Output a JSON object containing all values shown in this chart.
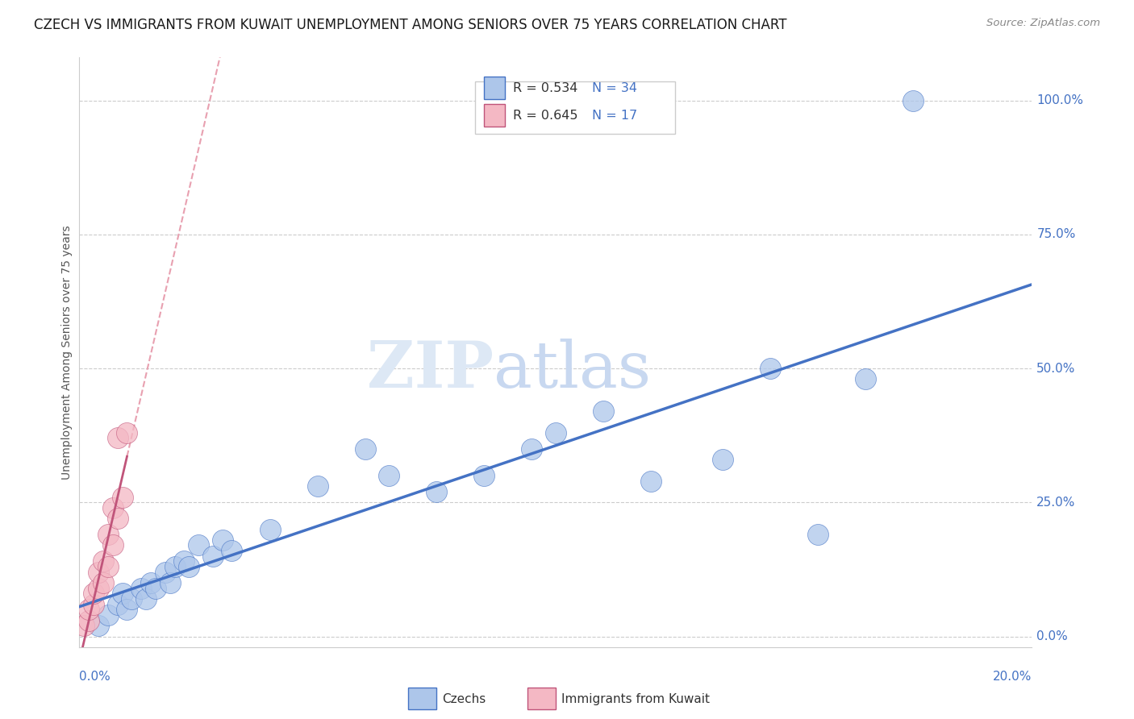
{
  "title": "CZECH VS IMMIGRANTS FROM KUWAIT UNEMPLOYMENT AMONG SENIORS OVER 75 YEARS CORRELATION CHART",
  "source": "Source: ZipAtlas.com",
  "ylabel": "Unemployment Among Seniors over 75 years",
  "ytick_labels": [
    "0.0%",
    "25.0%",
    "50.0%",
    "75.0%",
    "100.0%"
  ],
  "ytick_values": [
    0.0,
    0.25,
    0.5,
    0.75,
    1.0
  ],
  "xlim": [
    0.0,
    0.2
  ],
  "ylim": [
    -0.02,
    1.08
  ],
  "plot_ylim": [
    -0.02,
    1.08
  ],
  "blue_color": "#adc6ea",
  "pink_color": "#f4b8c4",
  "trendline_blue_color": "#4472c4",
  "trendline_pink_color": "#c0547a",
  "dashed_pink_color": "#e8a0b0",
  "axis_label_color": "#4472c4",
  "czechs_x": [
    0.004,
    0.006,
    0.008,
    0.009,
    0.01,
    0.011,
    0.013,
    0.014,
    0.015,
    0.016,
    0.018,
    0.019,
    0.02,
    0.022,
    0.023,
    0.025,
    0.028,
    0.03,
    0.032,
    0.04,
    0.05,
    0.06,
    0.065,
    0.075,
    0.085,
    0.095,
    0.1,
    0.11,
    0.12,
    0.135,
    0.145,
    0.155,
    0.165,
    0.175
  ],
  "czechs_y": [
    0.02,
    0.04,
    0.06,
    0.08,
    0.05,
    0.07,
    0.09,
    0.07,
    0.1,
    0.09,
    0.12,
    0.1,
    0.13,
    0.14,
    0.13,
    0.17,
    0.15,
    0.18,
    0.16,
    0.2,
    0.28,
    0.35,
    0.3,
    0.27,
    0.3,
    0.35,
    0.38,
    0.42,
    0.29,
    0.33,
    0.5,
    0.19,
    0.48,
    1.0
  ],
  "kuwait_x": [
    0.001,
    0.002,
    0.002,
    0.003,
    0.003,
    0.004,
    0.004,
    0.005,
    0.005,
    0.006,
    0.006,
    0.007,
    0.007,
    0.008,
    0.008,
    0.009,
    0.01
  ],
  "kuwait_y": [
    0.02,
    0.03,
    0.05,
    0.06,
    0.08,
    0.09,
    0.12,
    0.1,
    0.14,
    0.13,
    0.19,
    0.17,
    0.24,
    0.22,
    0.37,
    0.26,
    0.38
  ],
  "watermark_zip_color": "#dde8f5",
  "watermark_atlas_color": "#c8d8f0",
  "legend_blue_text": "R = 0.534   N = 34",
  "legend_pink_text": "R = 0.645   N = 17",
  "legend_r_color": "#333333",
  "legend_n_color": "#4472c4"
}
